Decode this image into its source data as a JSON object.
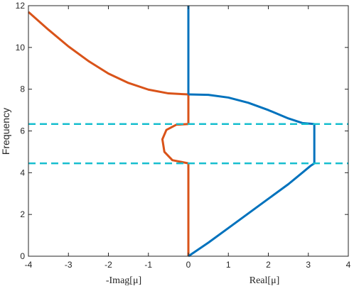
{
  "chart_data": {
    "type": "line",
    "title": "",
    "ylabel": "Frequency",
    "xlabel_left": "-Imag[μ]",
    "xlabel_right": "Real[μ]",
    "xlim": [
      -4,
      4
    ],
    "ylim": [
      0,
      12
    ],
    "x_ticks": [
      -4,
      -3,
      -2,
      -1,
      0,
      1,
      2,
      3,
      4
    ],
    "y_ticks": [
      0,
      2,
      4,
      6,
      8,
      10,
      12
    ],
    "x_tick_labels": [
      "-4",
      "-3",
      "-2",
      "-1",
      "0",
      "1",
      "2",
      "3",
      "4"
    ],
    "y_tick_labels": [
      "0",
      "2",
      "4",
      "6",
      "8",
      "10",
      "12"
    ],
    "grid": false,
    "series": [
      {
        "color": "#D95319",
        "style": "solid",
        "segments": [
          [
            [
              -4.0,
              11.7
            ],
            [
              -3.5,
              10.85
            ],
            [
              -3.0,
              10.05
            ],
            [
              -2.5,
              9.35
            ],
            [
              -2.0,
              8.75
            ],
            [
              -1.5,
              8.3
            ],
            [
              -1.0,
              7.98
            ],
            [
              -0.5,
              7.8
            ],
            [
              0.0,
              7.75
            ]
          ],
          [
            [
              0.0,
              7.75
            ],
            [
              0.0,
              6.33
            ]
          ],
          [
            [
              0.0,
              6.33
            ],
            [
              -0.3,
              6.3
            ],
            [
              -0.55,
              6.05
            ],
            [
              -0.65,
              5.6
            ],
            [
              -0.6,
              5.0
            ],
            [
              -0.4,
              4.6
            ],
            [
              0.0,
              4.45
            ]
          ],
          [
            [
              0.0,
              4.45
            ],
            [
              0.0,
              0.0
            ]
          ]
        ]
      },
      {
        "color": "#0072BD",
        "style": "solid",
        "segments": [
          [
            [
              0.0,
              12.0
            ],
            [
              0.0,
              7.75
            ]
          ],
          [
            [
              0.0,
              7.75
            ],
            [
              0.5,
              7.73
            ],
            [
              1.0,
              7.6
            ],
            [
              1.5,
              7.35
            ],
            [
              2.0,
              7.0
            ],
            [
              2.5,
              6.6
            ],
            [
              2.85,
              6.38
            ],
            [
              3.15,
              6.33
            ]
          ],
          [
            [
              3.15,
              6.33
            ],
            [
              3.15,
              4.45
            ]
          ],
          [
            [
              0.0,
              0.0
            ],
            [
              0.5,
              0.65
            ],
            [
              1.0,
              1.35
            ],
            [
              1.5,
              2.05
            ],
            [
              2.0,
              2.75
            ],
            [
              2.5,
              3.45
            ],
            [
              2.85,
              4.0
            ],
            [
              3.05,
              4.32
            ],
            [
              3.15,
              4.45
            ]
          ]
        ]
      },
      {
        "color": "#17BECF",
        "style": "dashed",
        "segments": [
          [
            [
              -4.0,
              6.33
            ],
            [
              4.0,
              6.33
            ]
          ],
          [
            [
              -4.0,
              4.45
            ],
            [
              4.0,
              4.45
            ]
          ]
        ]
      }
    ]
  }
}
